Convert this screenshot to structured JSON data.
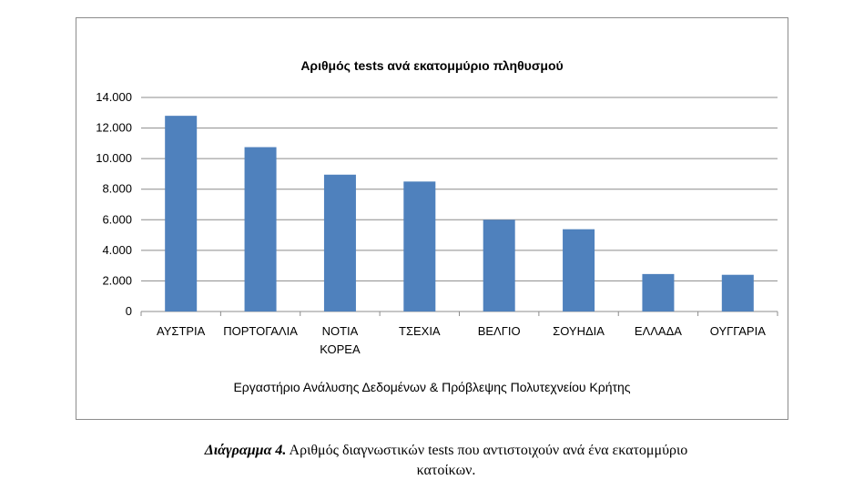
{
  "chart_data": {
    "type": "bar",
    "title": "Αριθμός tests ανά εκατομμύριο πληθυσμού",
    "categories": [
      [
        "ΑΥΣΤΡΙΑ"
      ],
      [
        "ΠΟΡΤΟΓΑΛΙΑ"
      ],
      [
        "ΝΟΤΙΑ",
        "ΚΟΡΕΑ"
      ],
      [
        "ΤΣΕΧΙΑ"
      ],
      [
        "ΒΕΛΓΙΟ"
      ],
      [
        "ΣΟΥΗΔΙΑ"
      ],
      [
        "ΕΛΛΑΔΑ"
      ],
      [
        "ΟΥΓΓΑΡΙΑ"
      ]
    ],
    "values": [
      12800,
      10750,
      8950,
      8500,
      6000,
      5380,
      2450,
      2400
    ],
    "ylim": [
      0,
      14000
    ],
    "yticks": [
      0,
      2000,
      4000,
      6000,
      8000,
      10000,
      12000,
      14000
    ],
    "ytick_labels": [
      "0",
      "2.000",
      "4.000",
      "6.000",
      "8.000",
      "10.000",
      "12.000",
      "14.000"
    ],
    "grid": true,
    "bar_color": "#4f81bd",
    "grid_color": "#8c8c8c"
  },
  "source_note": "Εργαστήριο Ανάλυσης Δεδομένων & Πρόβλεψης Πολυτεχνείου Κρήτης",
  "caption": {
    "lead": "Διάγραμμα 4.",
    "line1": " Αριθμός διαγνωστικών tests που αντιστοιχούν ανά ένα εκατομμύριο",
    "line2": "κατοίκων."
  }
}
